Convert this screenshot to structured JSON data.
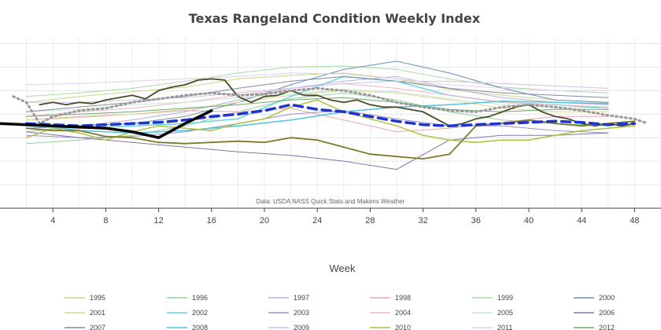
{
  "chart_data": {
    "type": "line",
    "title": "Texas Rangeland Condition Weekly Index",
    "xlabel": "Week",
    "ylabel": "",
    "source": "Data: USDA NASS Quick Stats and Makens Weather",
    "xlim": [
      0,
      50
    ],
    "ylim": [
      180,
      325
    ],
    "x_ticks": [
      4,
      8,
      12,
      16,
      20,
      24,
      28,
      32,
      36,
      40,
      44,
      48
    ],
    "grid": true,
    "legend_placement": "bottom",
    "series": [
      {
        "name": "1995",
        "color": "#c7d68a",
        "width": 1,
        "x": [
          2,
          6,
          10,
          14,
          18,
          22,
          26,
          30,
          34,
          38,
          42,
          46
        ],
        "y": [
          270,
          275,
          279,
          283,
          290,
          293,
          295,
          290,
          281,
          276,
          272,
          270
        ]
      },
      {
        "name": "1996",
        "color": "#8fd19e",
        "width": 1,
        "x": [
          2,
          6,
          10,
          14,
          18,
          22,
          26,
          30,
          34,
          38,
          42,
          46
        ],
        "y": [
          235,
          238,
          242,
          250,
          262,
          273,
          278,
          272,
          262,
          255,
          252,
          250
        ]
      },
      {
        "name": "1997",
        "color": "#b7b0d8",
        "width": 1,
        "x": [
          2,
          6,
          10,
          14,
          18,
          22,
          26,
          30,
          34,
          38,
          42,
          46
        ],
        "y": [
          245,
          250,
          255,
          262,
          272,
          282,
          288,
          292,
          282,
          274,
          270,
          268
        ]
      },
      {
        "name": "1998",
        "color": "#e3a8b0",
        "width": 1,
        "x": [
          2,
          6,
          10,
          14,
          18,
          22,
          26,
          30,
          34,
          38,
          42,
          46
        ],
        "y": [
          255,
          258,
          260,
          263,
          262,
          265,
          255,
          245,
          248,
          253,
          258,
          258
        ]
      },
      {
        "name": "1999",
        "color": "#a8dca8",
        "width": 1,
        "x": [
          2,
          6,
          10,
          14,
          18,
          22,
          26,
          30,
          34,
          38,
          42,
          46
        ],
        "y": [
          275,
          278,
          282,
          288,
          295,
          300,
          301,
          298,
          290,
          283,
          280,
          278
        ]
      },
      {
        "name": "2000",
        "color": "#6b8fb3",
        "width": 1,
        "x": [
          2,
          6,
          10,
          14,
          18,
          22,
          26,
          30,
          34,
          38,
          42,
          46
        ],
        "y": [
          248,
          250,
          252,
          258,
          270,
          285,
          298,
          305,
          295,
          282,
          272,
          270
        ]
      },
      {
        "name": "2001",
        "color": "#d6d894",
        "width": 1,
        "x": [
          2,
          6,
          10,
          14,
          18,
          22,
          26,
          30,
          34,
          38,
          42,
          46
        ],
        "y": [
          255,
          257,
          260,
          264,
          270,
          276,
          280,
          278,
          272,
          265,
          262,
          262
        ]
      },
      {
        "name": "2002",
        "color": "#69d3e0",
        "width": 1.5,
        "x": [
          2,
          6,
          10,
          14,
          18,
          22,
          26,
          30,
          34,
          38,
          42,
          46
        ],
        "y": [
          250,
          248,
          250,
          252,
          256,
          275,
          292,
          288,
          276,
          270,
          268,
          265
        ]
      },
      {
        "name": "2003",
        "color": "#9b93c9",
        "width": 1,
        "x": [
          2,
          6,
          10,
          14,
          18,
          22,
          26,
          30,
          34,
          38,
          42,
          46
        ],
        "y": [
          242,
          240,
          241,
          245,
          252,
          260,
          263,
          256,
          250,
          250,
          246,
          244
        ]
      },
      {
        "name": "2004",
        "color": "#f0b7c6",
        "width": 1,
        "x": [
          2,
          6,
          10,
          14,
          18,
          22,
          26,
          30,
          34,
          38,
          42,
          46
        ],
        "y": [
          258,
          262,
          265,
          270,
          276,
          282,
          286,
          282,
          276,
          270,
          268,
          266
        ]
      },
      {
        "name": "2005",
        "color": "#c9e8d0",
        "width": 1,
        "x": [
          2,
          6,
          10,
          14,
          18,
          22,
          26,
          30,
          34,
          38,
          42,
          46
        ],
        "y": [
          262,
          264,
          268,
          270,
          274,
          277,
          281,
          279,
          273,
          268,
          266,
          265
        ]
      },
      {
        "name": "2006",
        "color": "#8078a8",
        "width": 1,
        "x": [
          2,
          6,
          10,
          14,
          18,
          22,
          26,
          30,
          34,
          38,
          42,
          46
        ],
        "y": [
          245,
          240,
          236,
          232,
          228,
          225,
          220,
          213,
          238,
          242,
          242,
          244
        ]
      },
      {
        "name": "2007",
        "color": "#7f8c9c",
        "width": 1,
        "x": [
          2,
          6,
          10,
          14,
          18,
          22,
          26,
          30,
          34,
          38,
          42,
          46
        ],
        "y": [
          262,
          266,
          270,
          275,
          282,
          288,
          292,
          288,
          282,
          278,
          276,
          274
        ]
      },
      {
        "name": "2008",
        "color": "#4ec4de",
        "width": 1.5,
        "x": [
          2,
          6,
          10,
          14,
          18,
          22,
          26,
          30,
          34,
          38,
          42,
          46
        ],
        "y": [
          252,
          246,
          244,
          246,
          250,
          255,
          262,
          266,
          268,
          271,
          270,
          269
        ]
      },
      {
        "name": "2009",
        "color": "#cfc2e6",
        "width": 1,
        "x": [
          2,
          6,
          10,
          14,
          18,
          22,
          26,
          30,
          34,
          38,
          42,
          46
        ],
        "y": [
          270,
          270,
          272,
          274,
          278,
          282,
          286,
          288,
          288,
          286,
          284,
          282
        ]
      },
      {
        "name": "2010",
        "color": "#aac23c",
        "width": 1.5,
        "x": [
          2,
          4,
          6,
          8,
          10,
          12,
          14,
          16,
          18,
          20,
          22,
          24,
          26,
          28,
          30,
          32,
          34,
          36,
          38,
          40,
          42,
          44,
          46,
          48
        ],
        "y": [
          240,
          248,
          244,
          238,
          245,
          250,
          248,
          246,
          252,
          256,
          266,
          272,
          262,
          256,
          250,
          242,
          238,
          236,
          238,
          238,
          242,
          246,
          248,
          250
        ]
      },
      {
        "name": "2011",
        "color": "#e0d0ec",
        "width": 1,
        "x": [
          2,
          6,
          10,
          14,
          18,
          22,
          26,
          30,
          34,
          38,
          42,
          46
        ],
        "y": [
          285,
          286,
          288,
          290,
          292,
          295,
          294,
          290,
          285,
          282,
          280,
          280
        ]
      },
      {
        "name": "2012",
        "color": "#6da86a",
        "width": 1,
        "x": [
          2,
          6,
          10,
          14,
          18,
          22,
          26,
          30,
          34,
          38,
          42,
          46
        ],
        "y": [
          258,
          260,
          262,
          265,
          268,
          272,
          274,
          270,
          264,
          262,
          264,
          264
        ]
      },
      {
        "name": "",
        "color": "#4a4a28",
        "width": 1.8,
        "x": [
          3,
          4,
          5,
          6,
          7,
          8,
          9,
          10,
          11,
          12,
          13,
          14,
          15,
          16,
          17,
          18,
          19,
          20,
          21,
          22,
          23,
          24,
          25,
          26,
          27,
          28,
          29,
          30,
          31,
          32,
          33,
          34,
          35,
          36,
          37,
          38,
          39,
          40,
          41,
          42,
          43,
          44,
          45,
          46,
          47,
          48
        ],
        "y": [
          268,
          270,
          268,
          270,
          269,
          272,
          274,
          276,
          273,
          280,
          283,
          285,
          289,
          290,
          289,
          275,
          270,
          275,
          276,
          280,
          276,
          276,
          272,
          270,
          272,
          268,
          266,
          266,
          264,
          262,
          256,
          250,
          252,
          256,
          258,
          262,
          266,
          268,
          262,
          258,
          256,
          252,
          250,
          252,
          250,
          252
        ]
      },
      {
        "name": "",
        "color": "#7f7a2a",
        "width": 1.8,
        "x": [
          2,
          4,
          6,
          8,
          10,
          12,
          14,
          16,
          18,
          20,
          22,
          24,
          26,
          28,
          30,
          32,
          34,
          36,
          38,
          40,
          42,
          44,
          46,
          48
        ],
        "y": [
          248,
          246,
          246,
          241,
          240,
          236,
          235,
          236,
          237,
          236,
          240,
          238,
          232,
          226,
          224,
          222,
          226,
          250,
          252,
          255,
          252,
          250,
          252,
          254
        ]
      },
      {
        "name": "",
        "color": "#999999",
        "width": 3,
        "dash": "2,4",
        "x": [
          1,
          2,
          3,
          4,
          6,
          8,
          10,
          12,
          14,
          16,
          18,
          20,
          22,
          24,
          26,
          28,
          30,
          32,
          34,
          36,
          38,
          40,
          42,
          44,
          46,
          48,
          49
        ],
        "y": [
          275,
          270,
          252,
          258,
          263,
          265,
          270,
          273,
          276,
          278,
          276,
          277,
          280,
          282,
          280,
          276,
          270,
          266,
          263,
          262,
          266,
          268,
          266,
          263,
          259,
          256,
          252
        ]
      },
      {
        "name": "",
        "color": "#1d34d0",
        "width": 3.5,
        "dash": "11,7",
        "x": [
          2,
          4,
          6,
          8,
          10,
          12,
          14,
          16,
          18,
          20,
          22,
          24,
          26,
          28,
          30,
          32,
          34,
          36,
          38,
          40,
          42,
          44,
          46,
          48
        ],
        "y": [
          252,
          251,
          250,
          251,
          252,
          253,
          255,
          258,
          260,
          263,
          268,
          264,
          262,
          258,
          254,
          251,
          250,
          251,
          252,
          253,
          254,
          253,
          251,
          252
        ]
      },
      {
        "name": "",
        "color": "#000000",
        "width": 3.5,
        "x": [
          0,
          2,
          4,
          6,
          8,
          10,
          12,
          14,
          16
        ],
        "y": [
          252,
          251,
          250,
          249,
          248,
          245,
          240,
          252,
          263
        ]
      }
    ]
  }
}
